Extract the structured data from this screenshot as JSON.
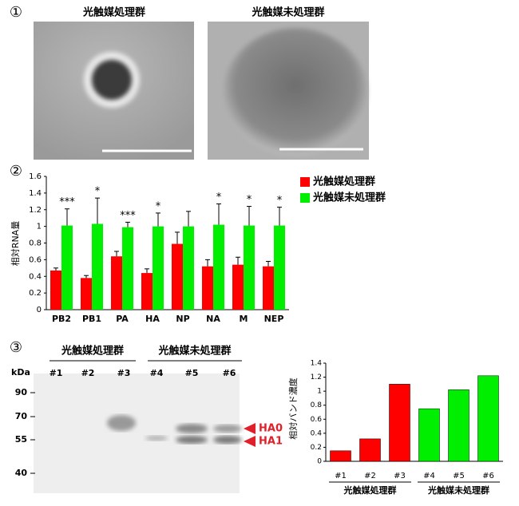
{
  "panel_labels": [
    "①",
    "②",
    "③"
  ],
  "micrographs": {
    "labels": [
      "光触媒処理群",
      "光触媒未処理群"
    ]
  },
  "chart_data": [
    {
      "type": "bar",
      "y_label": "相対RNA量",
      "categories": [
        "PB2",
        "PB1",
        "PA",
        "HA",
        "NP",
        "NA",
        "M",
        "NEP"
      ],
      "series": [
        {
          "name": "光触媒処理群",
          "color": "#ff0000",
          "values": [
            0.47,
            0.38,
            0.64,
            0.44,
            0.79,
            0.52,
            0.54,
            0.52
          ],
          "errors": [
            0.03,
            0.03,
            0.06,
            0.05,
            0.14,
            0.08,
            0.09,
            0.06
          ]
        },
        {
          "name": "光触媒未処理群",
          "color": "#00ee00",
          "values": [
            1.01,
            1.03,
            0.99,
            1.0,
            1.0,
            1.02,
            1.01,
            1.01
          ],
          "errors": [
            0.2,
            0.31,
            0.06,
            0.16,
            0.18,
            0.25,
            0.23,
            0.22
          ]
        }
      ],
      "annotations": [
        "***",
        "*",
        "***",
        "*",
        null,
        "*",
        "*",
        "*"
      ],
      "ylim": [
        0,
        1.6
      ],
      "yticks": [
        0,
        0.2,
        0.4,
        0.6,
        0.8,
        1,
        1.2,
        1.4,
        1.6
      ],
      "legend": "right"
    },
    {
      "type": "bar",
      "y_label": "相対バンド濃度",
      "categories": [
        "#1",
        "#2",
        "#3",
        "#4",
        "#5",
        "#6"
      ],
      "values": [
        0.15,
        0.32,
        1.1,
        0.75,
        1.02,
        1.22
      ],
      "colors": [
        "#ff0000",
        "#ff0000",
        "#ff0000",
        "#00ee00",
        "#00ee00",
        "#00ee00"
      ],
      "group_labels": [
        "光触媒処理群",
        "光触媒未処理群"
      ],
      "ylim": [
        0,
        1.4
      ],
      "yticks": [
        0,
        0.2,
        0.4,
        0.6,
        0.8,
        1,
        1.2,
        1.4
      ]
    }
  ],
  "blot": {
    "group_labels": [
      "光触媒処理群",
      "光触媒未処理群"
    ],
    "lanes": [
      "#1",
      "#2",
      "#3",
      "#4",
      "#5",
      "#6"
    ],
    "unit": "kDa",
    "markers": [
      90,
      70,
      55,
      40
    ],
    "bands": [
      "HA0",
      "HA1"
    ]
  }
}
